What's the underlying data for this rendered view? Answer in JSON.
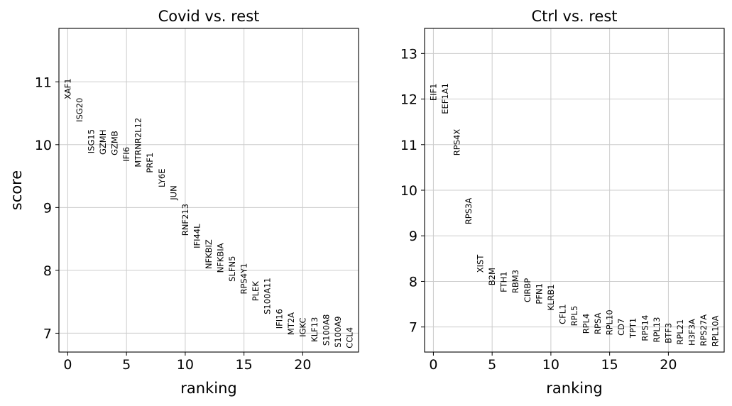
{
  "chart_data": [
    {
      "type": "scatter",
      "title": "Covid vs. rest",
      "xlabel": "ranking",
      "ylabel": "score",
      "xlim": [
        -0.75,
        24.75
      ],
      "ylim": [
        6.7,
        11.85
      ],
      "xticks": [
        0,
        5,
        10,
        15,
        20
      ],
      "yticks": [
        7,
        8,
        9,
        10,
        11
      ],
      "grid": true,
      "points": [
        {
          "rank": 0,
          "gene": "XAF1",
          "score": 10.72
        },
        {
          "rank": 1,
          "gene": "ISG20",
          "score": 10.36
        },
        {
          "rank": 2,
          "gene": "ISG15",
          "score": 9.86
        },
        {
          "rank": 3,
          "gene": "GZMH",
          "score": 9.84
        },
        {
          "rank": 4,
          "gene": "GZMB",
          "score": 9.83
        },
        {
          "rank": 5,
          "gene": "IFI6",
          "score": 9.73
        },
        {
          "rank": 6,
          "gene": "MTRNR2L12",
          "score": 9.64
        },
        {
          "rank": 7,
          "gene": "PRF1",
          "score": 9.55
        },
        {
          "rank": 8,
          "gene": "LY6E",
          "score": 9.32
        },
        {
          "rank": 9,
          "gene": "JUN",
          "score": 9.12
        },
        {
          "rank": 10,
          "gene": "RNF213",
          "score": 8.55
        },
        {
          "rank": 11,
          "gene": "IFI44L",
          "score": 8.35
        },
        {
          "rank": 12,
          "gene": "NFKBIZ",
          "score": 8.02
        },
        {
          "rank": 13,
          "gene": "NFKBIA",
          "score": 7.96
        },
        {
          "rank": 14,
          "gene": "SLFN5",
          "score": 7.82
        },
        {
          "rank": 15,
          "gene": "RPS4Y1",
          "score": 7.62
        },
        {
          "rank": 16,
          "gene": "PLEK",
          "score": 7.51
        },
        {
          "rank": 17,
          "gene": "S100A11",
          "score": 7.3
        },
        {
          "rank": 18,
          "gene": "IFI16",
          "score": 7.07
        },
        {
          "rank": 19,
          "gene": "MT2A",
          "score": 6.97
        },
        {
          "rank": 20,
          "gene": "IGKC",
          "score": 6.94
        },
        {
          "rank": 21,
          "gene": "KLF13",
          "score": 6.86
        },
        {
          "rank": 22,
          "gene": "S100A8",
          "score": 6.8
        },
        {
          "rank": 23,
          "gene": "S100A9",
          "score": 6.77
        },
        {
          "rank": 24,
          "gene": "CCL4",
          "score": 6.76
        }
      ]
    },
    {
      "type": "scatter",
      "title": "Ctrl vs. rest",
      "xlabel": "ranking",
      "ylabel": "",
      "xlim": [
        -0.75,
        24.75
      ],
      "ylim": [
        6.45,
        13.55
      ],
      "xticks": [
        0,
        5,
        10,
        15,
        20
      ],
      "yticks": [
        7,
        8,
        9,
        10,
        11,
        12,
        13
      ],
      "grid": true,
      "points": [
        {
          "rank": 0,
          "gene": "EIF1",
          "score": 11.96
        },
        {
          "rank": 1,
          "gene": "EEF1A1",
          "score": 11.67
        },
        {
          "rank": 2,
          "gene": "RPS4X",
          "score": 10.76
        },
        {
          "rank": 3,
          "gene": "RPS3A",
          "score": 9.25
        },
        {
          "rank": 4,
          "gene": "XIST",
          "score": 8.19
        },
        {
          "rank": 5,
          "gene": "B2M",
          "score": 7.91
        },
        {
          "rank": 6,
          "gene": "FTH1",
          "score": 7.76
        },
        {
          "rank": 7,
          "gene": "RBM3",
          "score": 7.74
        },
        {
          "rank": 8,
          "gene": "CIRBP",
          "score": 7.54
        },
        {
          "rank": 9,
          "gene": "PFN1",
          "score": 7.5
        },
        {
          "rank": 10,
          "gene": "KLRB1",
          "score": 7.36
        },
        {
          "rank": 11,
          "gene": "CFL1",
          "score": 7.06
        },
        {
          "rank": 12,
          "gene": "RPL5",
          "score": 7.02
        },
        {
          "rank": 13,
          "gene": "RPL4",
          "score": 6.85
        },
        {
          "rank": 14,
          "gene": "RPSA",
          "score": 6.84
        },
        {
          "rank": 15,
          "gene": "RPL10",
          "score": 6.82
        },
        {
          "rank": 16,
          "gene": "CD7",
          "score": 6.81
        },
        {
          "rank": 17,
          "gene": "TPT1",
          "score": 6.76
        },
        {
          "rank": 18,
          "gene": "RPS14",
          "score": 6.69
        },
        {
          "rank": 19,
          "gene": "RPL13",
          "score": 6.66
        },
        {
          "rank": 20,
          "gene": "BTF3",
          "score": 6.64
        },
        {
          "rank": 21,
          "gene": "RPL21",
          "score": 6.61
        },
        {
          "rank": 22,
          "gene": "H3F3A",
          "score": 6.59
        },
        {
          "rank": 23,
          "gene": "RPS27A",
          "score": 6.58
        },
        {
          "rank": 24,
          "gene": "RPL10A",
          "score": 6.57
        }
      ]
    }
  ]
}
